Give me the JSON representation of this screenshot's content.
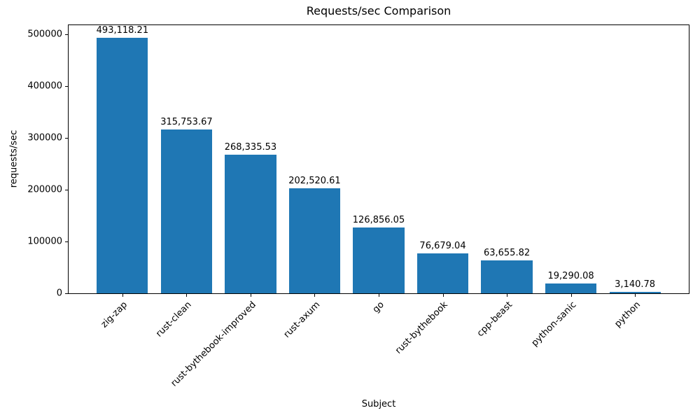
{
  "chart_data": {
    "type": "bar",
    "title": "Requests/sec Comparison",
    "xlabel": "Subject",
    "ylabel": "requests/sec",
    "categories": [
      "zig-zap",
      "rust-clean",
      "rust-bythebook-improved",
      "rust-axum",
      "go",
      "rust-bythebook",
      "cpp-beast",
      "python-sanic",
      "python"
    ],
    "values": [
      493118.21,
      315753.67,
      268335.53,
      202520.61,
      126856.05,
      76679.04,
      63655.82,
      19290.08,
      3140.78
    ],
    "value_labels": [
      "493,118.21",
      "315,753.67",
      "268,335.53",
      "202,520.61",
      "126,856.05",
      "76,679.04",
      "63,655.82",
      "19,290.08",
      "3,140.78"
    ],
    "y_ticks": [
      0,
      100000,
      200000,
      300000,
      400000,
      500000
    ],
    "ylim": [
      0,
      517774
    ],
    "bar_color": "#1f77b4",
    "grid": false,
    "legend": null,
    "x_tick_rotation_deg": 45
  }
}
